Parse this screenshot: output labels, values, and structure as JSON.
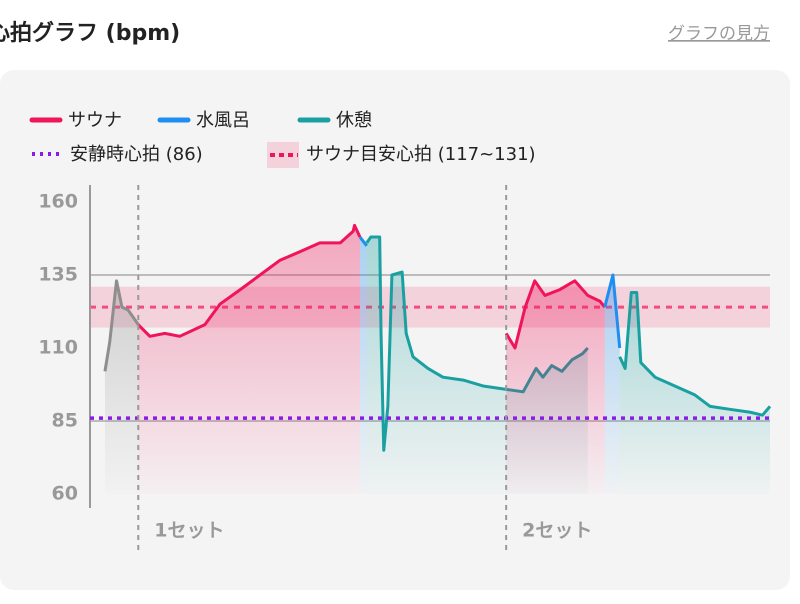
{
  "header": {
    "title": "心拍グラフ (bpm)",
    "link": "グラフの見方"
  },
  "chart_data": {
    "type": "line",
    "ylim": [
      60,
      160
    ],
    "yticks": [
      60,
      85,
      110,
      135,
      160
    ],
    "xlim": [
      0,
      100
    ],
    "gridlines": [
      135,
      85
    ],
    "series": [
      {
        "name": "サウナ",
        "color": "#f0145a",
        "x": [
          7.1,
          8.8,
          11,
          13.2,
          16.9,
          19.1,
          22.1,
          25,
          27.9,
          30.9,
          33.8,
          36.8,
          38.7,
          38.9,
          39.7
        ],
        "values": [
          118,
          114,
          115,
          114,
          118,
          125,
          130,
          135,
          140,
          143,
          146,
          146,
          150,
          152,
          148
        ]
      },
      {
        "name": "水風呂",
        "color": "#1e8ff0",
        "x": [
          39.7,
          40.7
        ],
        "values": [
          148,
          145
        ]
      },
      {
        "name": "休憩",
        "color": "#1aa0a0",
        "x": [
          40.7,
          41.3,
          42.6,
          42.8,
          43.2,
          43.8,
          44.4,
          45.9,
          46.5,
          47.5,
          49.7,
          51.9,
          54.9,
          57.8,
          60.7,
          63.7,
          65.6,
          66.6,
          67.9,
          69.4,
          70.9,
          72.4,
          73.2
        ],
        "values": [
          146,
          148,
          148,
          115,
          75,
          90,
          135,
          136,
          115,
          107,
          103,
          100,
          99,
          97,
          96,
          95,
          103,
          100,
          104,
          102,
          106,
          108,
          110
        ]
      },
      {
        "name": "サウナ",
        "color": "#f0145a",
        "x": [
          61.2,
          62.5,
          64,
          65.4,
          66.9,
          69.1,
          71.3,
          73.2,
          75,
          75.7
        ],
        "values": [
          115,
          110,
          124,
          133,
          128,
          130,
          133,
          128,
          126,
          124
        ]
      },
      {
        "name": "水風呂",
        "color": "#1e8ff0",
        "x": [
          75.7,
          76.9,
          77.9
        ],
        "values": [
          124,
          135,
          110
        ]
      },
      {
        "name": "休憩",
        "color": "#1aa0a0",
        "x": [
          77.9,
          78.7,
          79.6,
          80.4,
          81,
          83.1,
          86,
          88.9,
          91.2,
          94.1,
          97.1,
          98.9,
          100
        ],
        "values": [
          107,
          103,
          129,
          129,
          105,
          100,
          97,
          94,
          90,
          89,
          88,
          87,
          90
        ]
      },
      {
        "color": "#8e8e8e",
        "x": [
          2.2,
          2.9,
          3.9,
          4.7,
          5.6,
          7.1
        ],
        "values": [
          102,
          112,
          133,
          124,
          123,
          118
        ]
      }
    ],
    "legend_series": [
      0,
      1,
      2
    ],
    "rest_line": {
      "label": "安静時心拍 (86)",
      "value": 86,
      "color": "#8a1be8"
    },
    "target_band": {
      "label": "サウナ目安心拍 (117~131)",
      "range": [
        117,
        131
      ],
      "color": "#f0145a"
    },
    "sets": [
      {
        "label": "1セット",
        "x": 7.1
      },
      {
        "label": "2セット",
        "x": 61.2
      }
    ]
  }
}
